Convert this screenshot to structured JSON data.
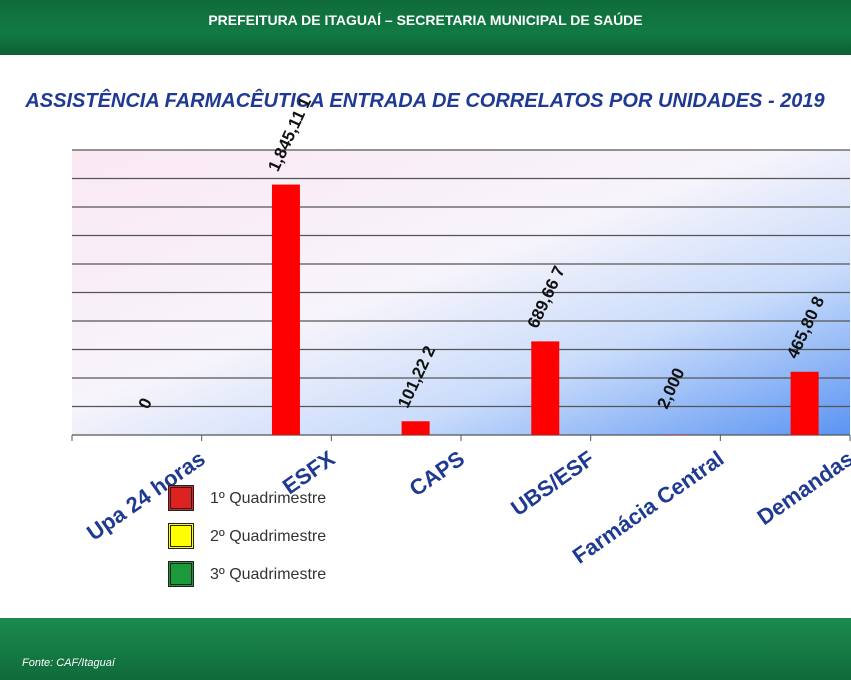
{
  "header": {
    "title": "PREFEITURA DE ITAGUAÍ – SECRETARIA MUNICIPAL DE SAÚDE"
  },
  "footer": {
    "source": "Fonte: CAF/Itaguaí"
  },
  "colors": {
    "bar": "#ff0000",
    "q1": "#dd2222",
    "q2": "#ffff00",
    "q3": "#1a9a3a",
    "title": "#1f3a93"
  },
  "chart_data": {
    "type": "bar",
    "title": "ASSISTÊNCIA FARMACÊUTICA ENTRADA DE CORRELATOS POR UNIDADES - 2019",
    "categories": [
      "Upa 24 horas",
      "ESFX",
      "CAPS",
      "UBS/ESF",
      "Farmácia Central",
      "Demandas"
    ],
    "series": [
      {
        "name": "1º Quadrimestre",
        "values": [
          0,
          1845.111,
          101.22,
          689.667,
          2.0,
          465.808
        ]
      }
    ],
    "data_labels": [
      "0",
      "1,845,11 1",
      "101,22 2",
      "689,66 7",
      "2,000",
      "465,80 8"
    ],
    "ylim": [
      0,
      2100
    ],
    "grid": true,
    "legend": {
      "position": "bottom-left",
      "items": [
        {
          "label": "1º Quadrimestre",
          "color": "#dd2222"
        },
        {
          "label": "2º Quadrimestre",
          "color": "#ffff00"
        },
        {
          "label": "3º Quadrimestre",
          "color": "#1a9a3a"
        }
      ]
    }
  }
}
